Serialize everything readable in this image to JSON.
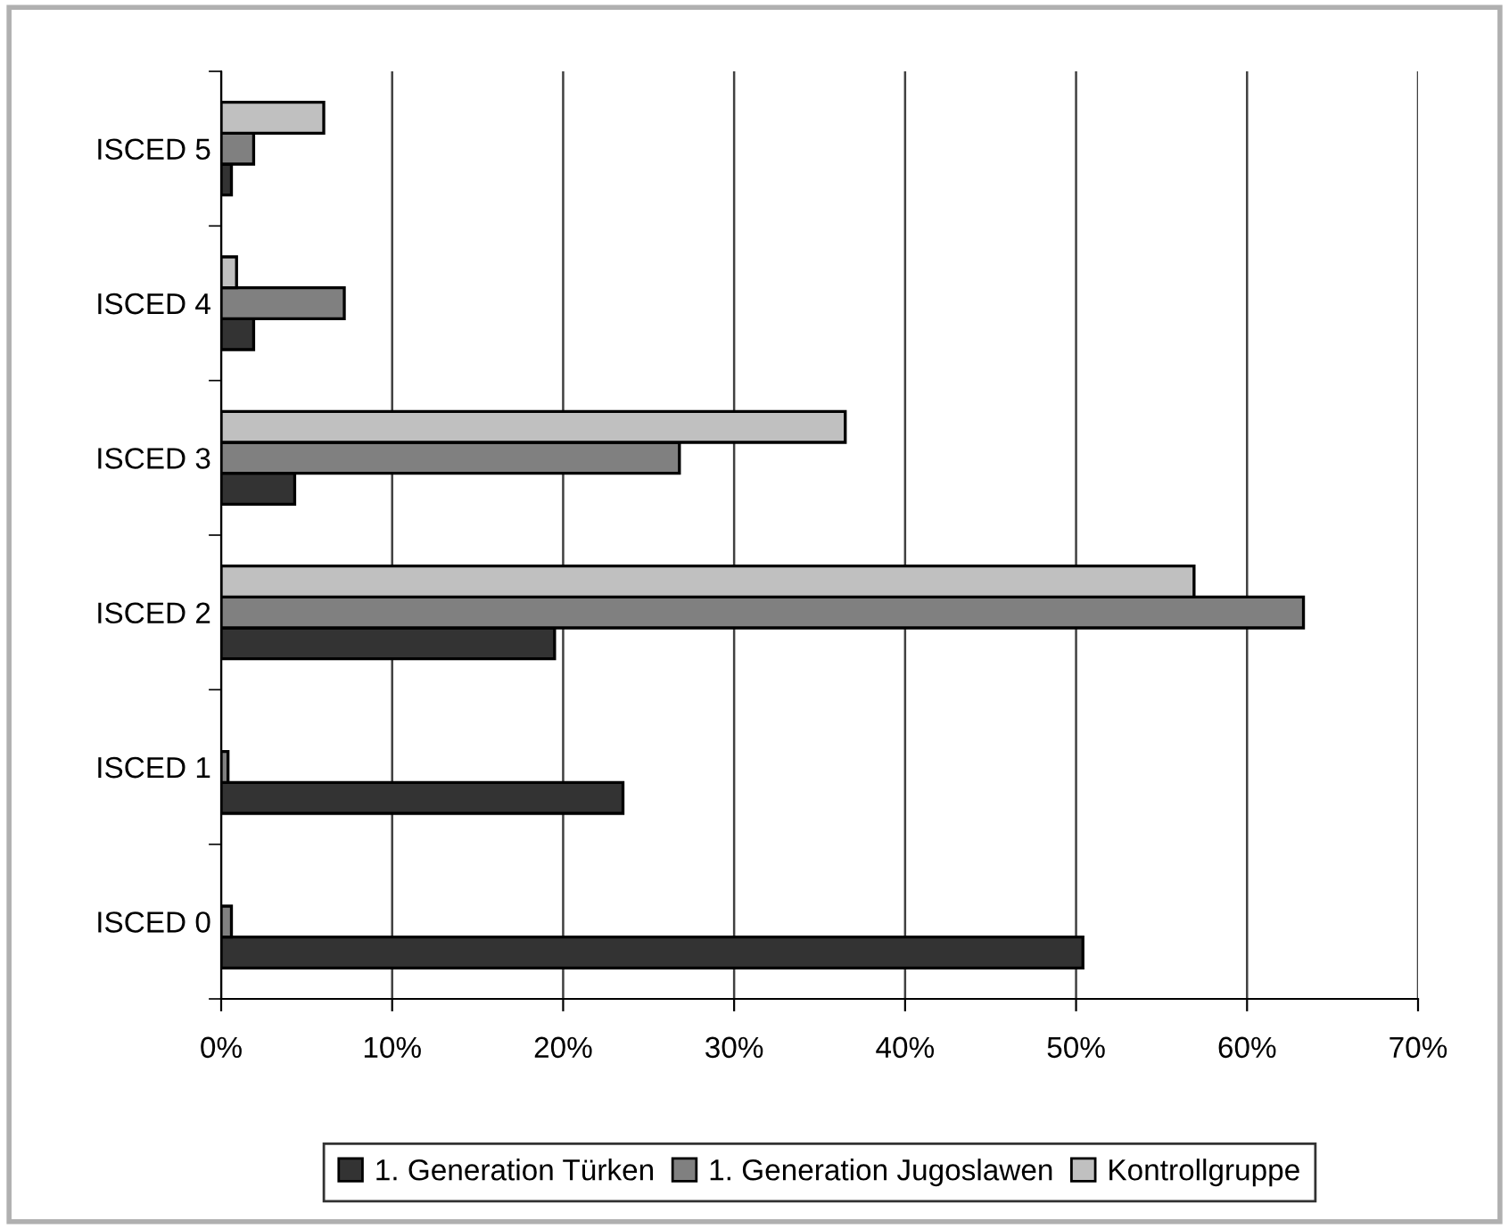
{
  "chart_data": {
    "type": "bar",
    "orientation": "horizontal",
    "categories": [
      "ISCED 5",
      "ISCED 4",
      "ISCED 3",
      "ISCED 2",
      "ISCED 1",
      "ISCED 0"
    ],
    "series": [
      {
        "name": "1. Generation Türken",
        "color": "#333333",
        "values": [
          0.6,
          1.9,
          4.3,
          19.5,
          23.5,
          50.4
        ]
      },
      {
        "name": "1. Generation Jugoslawen",
        "color": "#808080",
        "values": [
          1.9,
          7.2,
          26.8,
          63.3,
          0.4,
          0.6
        ]
      },
      {
        "name": "Kontrollgruppe",
        "color": "#c0c0c0",
        "values": [
          6.0,
          0.9,
          36.5,
          56.9,
          null,
          null
        ]
      }
    ],
    "xlim": [
      0,
      70
    ],
    "xticks": [
      {
        "value": 0,
        "label": "0%"
      },
      {
        "value": 10,
        "label": "10%"
      },
      {
        "value": 20,
        "label": "20%"
      },
      {
        "value": 30,
        "label": "30%"
      },
      {
        "value": 40,
        "label": "40%"
      },
      {
        "value": 50,
        "label": "50%"
      },
      {
        "value": 60,
        "label": "60%"
      },
      {
        "value": 70,
        "label": "70%"
      }
    ],
    "grid": "x",
    "legend": "bottom"
  }
}
